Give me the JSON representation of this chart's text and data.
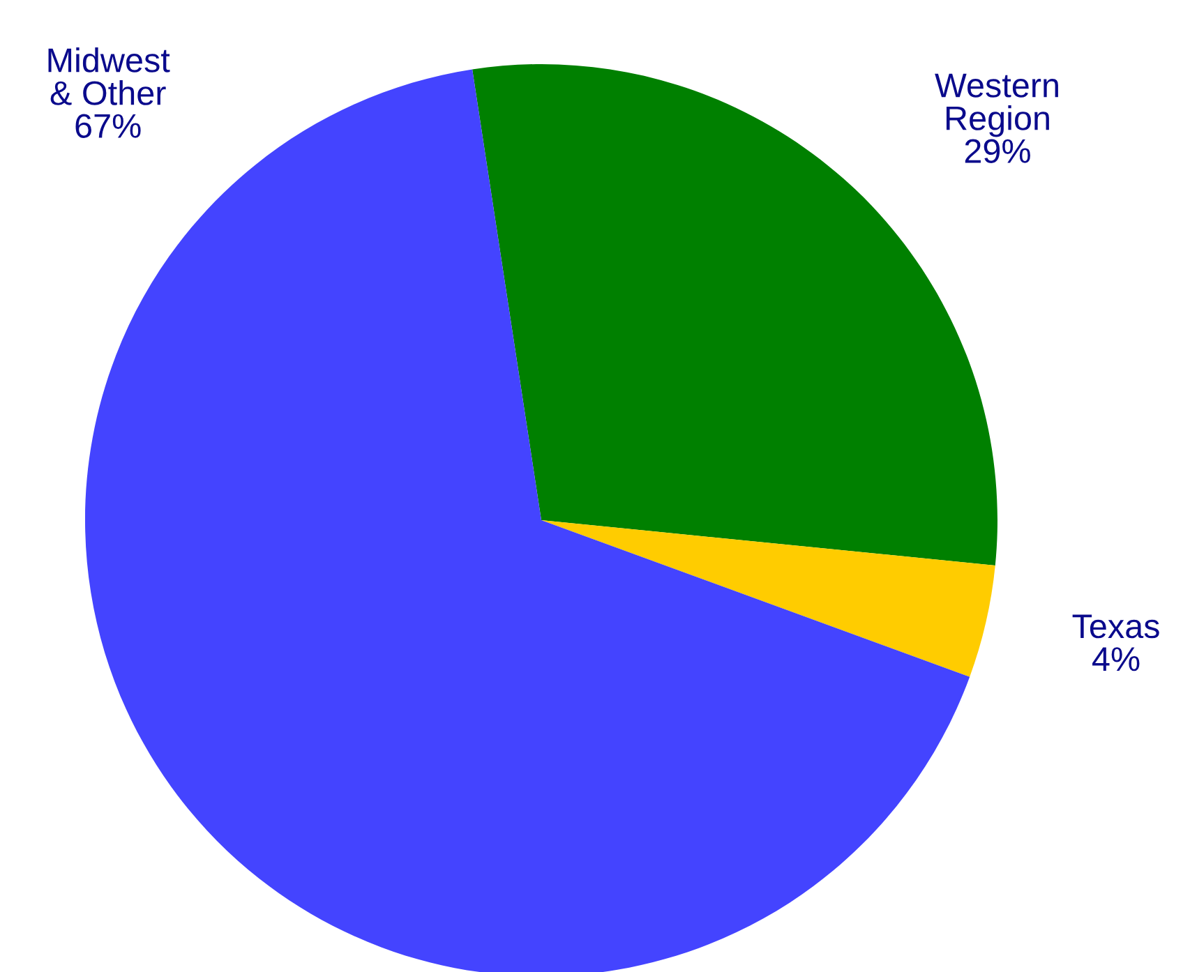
{
  "chart_data": {
    "type": "pie",
    "categories": [
      "Western Region",
      "Texas",
      "Midwest & Other"
    ],
    "values": [
      29,
      4,
      67
    ],
    "colors": [
      "#008000",
      "#ffcc00",
      "#4444ff"
    ],
    "value_labels": [
      "29%",
      "4%",
      "67%"
    ]
  }
}
